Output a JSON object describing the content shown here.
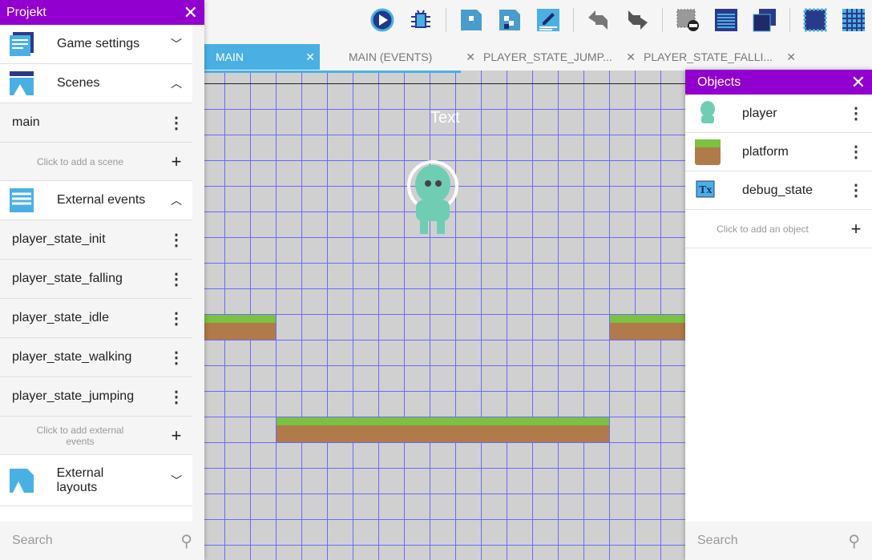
{
  "project": {
    "title": "Projekt",
    "sections": [
      {
        "label": "Game settings",
        "chevron": "⌄"
      },
      {
        "label": "Scenes",
        "chevron": "⌃"
      },
      {
        "label": "External events",
        "chevron": "⌃"
      },
      {
        "label": "External layouts",
        "chevron": "⌄"
      }
    ],
    "scenes": [
      "main"
    ],
    "add_scene": "Click to add a scene",
    "external_events": [
      "player_state_init",
      "player_state_falling",
      "player_state_idle",
      "player_state_walking",
      "player_state_jumping"
    ],
    "add_external_events": "Click to add external events",
    "search_placeholder": "Search"
  },
  "tabs": [
    {
      "label": "MAIN",
      "active": true
    },
    {
      "label": "MAIN (EVENTS)"
    },
    {
      "label": "PLAYER_STATE_JUMP..."
    },
    {
      "label": "PLAYER_STATE_FALLI..."
    }
  ],
  "toolbar": [
    "play-icon",
    "debug-icon",
    "object-icon",
    "object-groups-icon",
    "edit-icon",
    "undo-icon",
    "redo-icon",
    "delete-icon",
    "layers-icon",
    "instances-icon",
    "window-mask-icon",
    "grid-icon",
    "zoom-reset-icon"
  ],
  "scene": {
    "text_object": "Text"
  },
  "objects": {
    "title": "Objects",
    "items": [
      "player",
      "platform",
      "debug_state"
    ],
    "add": "Click to add an object",
    "search_placeholder": "Search"
  },
  "colors": {
    "accent": "#9100ce",
    "tab_active": "#4ab0e4"
  }
}
